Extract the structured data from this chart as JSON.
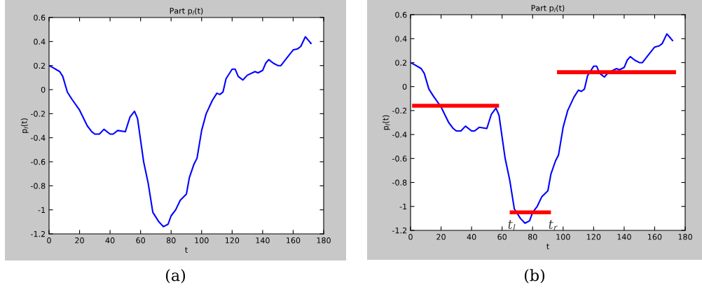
{
  "chart_data": [
    {
      "type": "line",
      "title": "Part p$_{l}$(t)",
      "xlabel": "t",
      "ylabel": "p$_{l}$(t)",
      "xlim": [
        0,
        180
      ],
      "ylim": [
        -1.2,
        0.6
      ],
      "xticks": [
        0,
        20,
        40,
        60,
        80,
        100,
        120,
        140,
        160,
        180
      ],
      "yticks": [
        -1.2,
        -1,
        -0.8,
        -0.6,
        -0.4,
        -0.2,
        0,
        0.2,
        0.4,
        0.6
      ],
      "grid": false,
      "legend": false,
      "series": [
        {
          "color": "#0000ff",
          "x": [
            0,
            3,
            7,
            9,
            12,
            15,
            20,
            25,
            28,
            30,
            33,
            36,
            40,
            42,
            45,
            50,
            53,
            56,
            58,
            60,
            62,
            65,
            68,
            72,
            75,
            78,
            80,
            83,
            86,
            90,
            92,
            95,
            97,
            100,
            103,
            107,
            110,
            112,
            114,
            116,
            120,
            122,
            124,
            127,
            130,
            135,
            137,
            140,
            142,
            144,
            147,
            150,
            152,
            155,
            160,
            163,
            165,
            168,
            170,
            172
          ],
          "values": [
            0.2,
            0.18,
            0.15,
            0.11,
            -0.02,
            -0.08,
            -0.17,
            -0.3,
            -0.35,
            -0.37,
            -0.37,
            -0.33,
            -0.37,
            -0.37,
            -0.34,
            -0.35,
            -0.23,
            -0.18,
            -0.24,
            -0.42,
            -0.6,
            -0.78,
            -1.02,
            -1.1,
            -1.14,
            -1.12,
            -1.05,
            -1.0,
            -0.92,
            -0.87,
            -0.73,
            -0.62,
            -0.57,
            -0.34,
            -0.2,
            -0.09,
            -0.03,
            -0.04,
            -0.02,
            0.09,
            0.17,
            0.17,
            0.11,
            0.08,
            0.12,
            0.15,
            0.14,
            0.16,
            0.22,
            0.25,
            0.22,
            0.2,
            0.2,
            0.25,
            0.33,
            0.34,
            0.36,
            0.44,
            0.41,
            0.38
          ]
        }
      ],
      "annotations": [
        "(a)"
      ]
    },
    {
      "type": "line",
      "title": "Part p$_{l}$(t)",
      "xlabel": "t",
      "ylabel": "p$_{l}$(t)",
      "xlim": [
        0,
        180
      ],
      "ylim": [
        -1.2,
        0.6
      ],
      "xticks": [
        0,
        20,
        40,
        60,
        80,
        100,
        120,
        140,
        160,
        180
      ],
      "yticks": [
        -1.2,
        -1,
        -0.8,
        -0.6,
        -0.4,
        -0.2,
        0,
        0.2,
        0.4,
        0.6
      ],
      "grid": false,
      "legend": false,
      "series": [
        {
          "color": "#0000ff",
          "x": [
            0,
            3,
            7,
            9,
            12,
            15,
            20,
            25,
            28,
            30,
            33,
            36,
            40,
            42,
            45,
            50,
            53,
            56,
            58,
            60,
            62,
            65,
            68,
            72,
            75,
            78,
            80,
            83,
            86,
            90,
            92,
            95,
            97,
            100,
            103,
            107,
            110,
            112,
            114,
            116,
            120,
            122,
            124,
            127,
            130,
            135,
            137,
            140,
            142,
            144,
            147,
            150,
            152,
            155,
            160,
            163,
            165,
            168,
            170,
            172
          ],
          "values": [
            0.2,
            0.18,
            0.15,
            0.11,
            -0.02,
            -0.08,
            -0.17,
            -0.3,
            -0.35,
            -0.37,
            -0.37,
            -0.33,
            -0.37,
            -0.37,
            -0.34,
            -0.35,
            -0.23,
            -0.18,
            -0.24,
            -0.42,
            -0.6,
            -0.78,
            -1.02,
            -1.1,
            -1.14,
            -1.12,
            -1.05,
            -1.0,
            -0.92,
            -0.87,
            -0.73,
            -0.62,
            -0.57,
            -0.34,
            -0.2,
            -0.09,
            -0.03,
            -0.04,
            -0.02,
            0.09,
            0.17,
            0.17,
            0.11,
            0.08,
            0.12,
            0.15,
            0.14,
            0.16,
            0.22,
            0.25,
            0.22,
            0.2,
            0.2,
            0.25,
            0.33,
            0.34,
            0.36,
            0.44,
            0.41,
            0.38
          ]
        },
        {
          "color": "#ff0000",
          "x": [
            1,
            58
          ],
          "values": [
            -0.16,
            -0.16
          ]
        },
        {
          "color": "#ff0000",
          "x": [
            65,
            92
          ],
          "values": [
            -1.05,
            -1.05
          ]
        },
        {
          "color": "#ff0000",
          "x": [
            96,
            174
          ],
          "values": [
            0.12,
            0.12
          ]
        }
      ],
      "annotations": [
        "(b)",
        {
          "text": "t$_{l}$",
          "x": 65,
          "y": -1.05
        },
        {
          "text": "t$_{r}$",
          "x": 92,
          "y": -1.05
        }
      ]
    }
  ]
}
